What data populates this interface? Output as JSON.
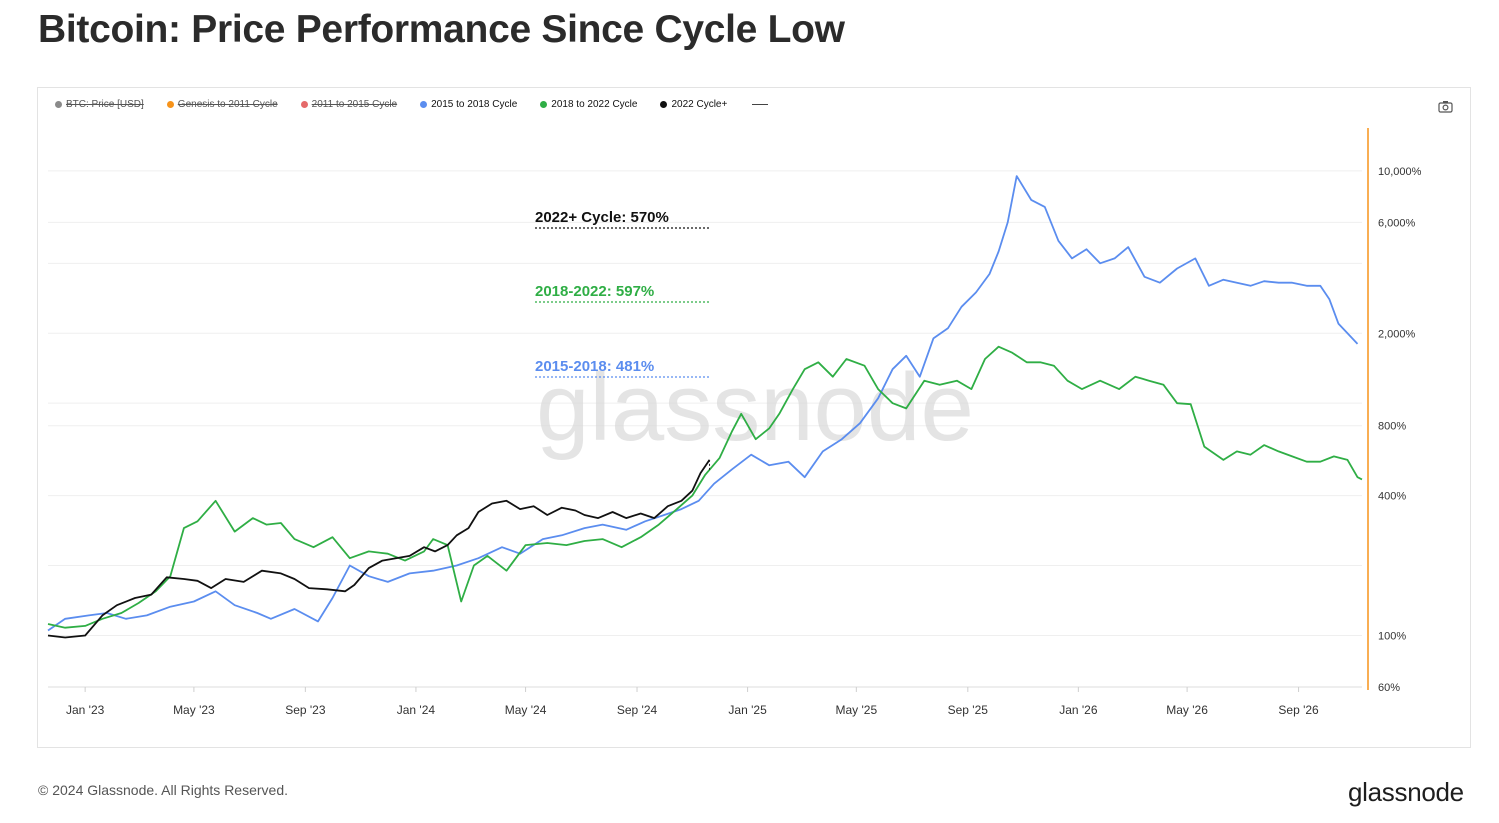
{
  "title": "Bitcoin: Price Performance Since Cycle Low",
  "legend": [
    {
      "label": "BTC: Price [USD]",
      "color": "#8a8a8a",
      "visible": false
    },
    {
      "label": "Genesis to 2011 Cycle",
      "color": "#f7931a",
      "visible": false
    },
    {
      "label": "2011 to 2015 Cycle",
      "color": "#e56a6a",
      "visible": false
    },
    {
      "label": "2015 to 2018 Cycle",
      "color": "#5b8def",
      "visible": true
    },
    {
      "label": "2018 to 2022 Cycle",
      "color": "#2fae45",
      "visible": true
    },
    {
      "label": "2022 Cycle+",
      "color": "#111111",
      "visible": true
    }
  ],
  "watermark": "glassnode",
  "footer": "© 2024 Glassnode. All Rights Reserved.",
  "brand": "glassnode",
  "icons": {
    "camera": "camera-icon"
  },
  "axis_color": "#f7931a",
  "chart_data": {
    "type": "line",
    "title": "Bitcoin: Price Performance Since Cycle Low",
    "x_range": [
      "2022-11-21",
      "2026-11-10"
    ],
    "x_ticks": [
      "Jan '23",
      "May '23",
      "Sep '23",
      "Jan '24",
      "May '24",
      "Sep '24",
      "Jan '25",
      "May '25",
      "Sep '25",
      "Jan '26",
      "May '26",
      "Sep '26"
    ],
    "y_scale": "log",
    "y_ticks": [
      "60%",
      "100%",
      "400%",
      "800%",
      "2,000%",
      "6,000%",
      "10,000%"
    ],
    "y_range": [
      60,
      15000
    ],
    "grid": true,
    "legend_position": "top-left",
    "annotations": [
      {
        "text": "2022+ Cycle: 570%",
        "color": "#111111",
        "value": 570
      },
      {
        "text": "2018-2022: 597%",
        "color": "#2fae45",
        "value": 597
      },
      {
        "text": "2015-2018: 481%",
        "color": "#5b8def",
        "value": 481
      }
    ],
    "series": [
      {
        "name": "2015 to 2018 Cycle",
        "color": "#5b8def",
        "x": [
          "2022-11-21",
          "2022-12-10",
          "2023-01-05",
          "2023-01-25",
          "2023-02-15",
          "2023-03-10",
          "2023-04-05",
          "2023-05-01",
          "2023-05-25",
          "2023-06-15",
          "2023-07-10",
          "2023-07-25",
          "2023-08-20",
          "2023-09-15",
          "2023-10-01",
          "2023-10-20",
          "2023-11-10",
          "2023-12-01",
          "2023-12-25",
          "2024-01-20",
          "2024-02-15",
          "2024-03-10",
          "2024-04-05",
          "2024-04-25",
          "2024-05-20",
          "2024-06-10",
          "2024-07-05",
          "2024-07-25",
          "2024-08-20",
          "2024-09-10",
          "2024-10-01",
          "2024-10-20",
          "2024-11-08",
          "2024-11-25",
          "2024-12-15",
          "2025-01-05",
          "2025-01-25",
          "2025-02-15",
          "2025-03-05",
          "2025-03-25",
          "2025-04-15",
          "2025-05-05",
          "2025-05-25",
          "2025-06-10",
          "2025-06-25",
          "2025-07-10",
          "2025-07-25",
          "2025-08-10",
          "2025-08-25",
          "2025-09-10",
          "2025-09-25",
          "2025-10-05",
          "2025-10-15",
          "2025-10-25",
          "2025-11-10",
          "2025-11-25",
          "2025-12-10",
          "2025-12-25",
          "2026-01-10",
          "2026-01-25",
          "2026-02-10",
          "2026-02-25",
          "2026-03-15",
          "2026-04-01",
          "2026-04-20",
          "2026-05-10",
          "2026-05-25",
          "2026-06-10",
          "2026-06-25",
          "2026-07-10",
          "2026-07-25",
          "2026-08-10",
          "2026-08-25",
          "2026-09-10",
          "2026-09-25",
          "2026-10-05",
          "2026-10-15",
          "2026-10-25",
          "2026-11-05"
        ],
        "values": [
          105,
          118,
          122,
          125,
          118,
          122,
          133,
          140,
          155,
          135,
          125,
          118,
          130,
          115,
          145,
          200,
          180,
          170,
          185,
          190,
          200,
          215,
          240,
          225,
          260,
          270,
          290,
          300,
          285,
          310,
          330,
          350,
          380,
          450,
          520,
          600,
          540,
          560,
          480,
          620,
          700,
          820,
          1050,
          1400,
          1600,
          1300,
          1900,
          2100,
          2600,
          3000,
          3600,
          4500,
          6000,
          9500,
          7500,
          7000,
          5000,
          4200,
          4600,
          4000,
          4200,
          4700,
          3500,
          3300,
          3800,
          4200,
          3200,
          3400,
          3300,
          3200,
          3350,
          3300,
          3300,
          3200,
          3200,
          2800,
          2200,
          2000,
          1800
        ]
      },
      {
        "name": "2018 to 2022 Cycle",
        "color": "#2fae45",
        "x": [
          "2022-11-21",
          "2022-12-10",
          "2023-01-01",
          "2023-01-20",
          "2023-02-10",
          "2023-03-01",
          "2023-03-20",
          "2023-04-05",
          "2023-04-20",
          "2023-05-05",
          "2023-05-25",
          "2023-06-15",
          "2023-07-05",
          "2023-07-20",
          "2023-08-05",
          "2023-08-20",
          "2023-09-10",
          "2023-10-01",
          "2023-10-20",
          "2023-11-10",
          "2023-12-01",
          "2023-12-20",
          "2024-01-10",
          "2024-01-20",
          "2024-02-05",
          "2024-02-20",
          "2024-03-05",
          "2024-03-20",
          "2024-04-10",
          "2024-05-01",
          "2024-05-25",
          "2024-06-15",
          "2024-07-05",
          "2024-07-25",
          "2024-08-15",
          "2024-09-05",
          "2024-09-25",
          "2024-10-15",
          "2024-11-01",
          "2024-11-15",
          "2024-12-01",
          "2024-12-15",
          "2024-12-25",
          "2025-01-10",
          "2025-01-25",
          "2025-02-05",
          "2025-02-20",
          "2025-03-05",
          "2025-03-20",
          "2025-04-05",
          "2025-04-20",
          "2025-05-10",
          "2025-05-25",
          "2025-06-10",
          "2025-06-25",
          "2025-07-15",
          "2025-08-01",
          "2025-08-20",
          "2025-09-05",
          "2025-09-20",
          "2025-10-05",
          "2025-10-20",
          "2025-11-05",
          "2025-11-20",
          "2025-12-05",
          "2025-12-20",
          "2026-01-05",
          "2026-01-25",
          "2026-02-15",
          "2026-03-05",
          "2026-03-20",
          "2026-04-05",
          "2026-04-20",
          "2026-05-05",
          "2026-05-20",
          "2026-06-10",
          "2026-06-25",
          "2026-07-10",
          "2026-07-25",
          "2026-08-10",
          "2026-08-25",
          "2026-09-10",
          "2026-09-25",
          "2026-10-10",
          "2026-10-25",
          "2026-11-05",
          "2026-11-10"
        ],
        "values": [
          112,
          108,
          110,
          118,
          125,
          138,
          155,
          180,
          290,
          310,
          380,
          280,
          320,
          300,
          305,
          260,
          240,
          265,
          215,
          230,
          225,
          210,
          230,
          260,
          245,
          140,
          200,
          220,
          190,
          245,
          250,
          245,
          255,
          260,
          240,
          265,
          300,
          350,
          400,
          490,
          580,
          760,
          900,
          700,
          780,
          900,
          1150,
          1400,
          1500,
          1300,
          1550,
          1450,
          1150,
          1000,
          950,
          1250,
          1200,
          1250,
          1150,
          1550,
          1750,
          1650,
          1500,
          1500,
          1450,
          1250,
          1150,
          1250,
          1150,
          1300,
          1250,
          1200,
          1000,
          990,
          650,
          570,
          620,
          600,
          660,
          620,
          590,
          560,
          560,
          590,
          570,
          480,
          470
        ]
      },
      {
        "name": "2022 Cycle+",
        "color": "#111111",
        "x": [
          "2022-11-21",
          "2022-12-10",
          "2023-01-01",
          "2023-01-20",
          "2023-02-05",
          "2023-02-25",
          "2023-03-15",
          "2023-04-01",
          "2023-04-20",
          "2023-05-05",
          "2023-05-20",
          "2023-06-05",
          "2023-06-25",
          "2023-07-15",
          "2023-08-05",
          "2023-08-20",
          "2023-09-05",
          "2023-09-25",
          "2023-10-15",
          "2023-10-25",
          "2023-11-10",
          "2023-11-25",
          "2023-12-10",
          "2023-12-25",
          "2024-01-10",
          "2024-01-22",
          "2024-02-05",
          "2024-02-15",
          "2024-02-28",
          "2024-03-10",
          "2024-03-25",
          "2024-04-10",
          "2024-04-25",
          "2024-05-10",
          "2024-05-25",
          "2024-06-10",
          "2024-06-25",
          "2024-07-05",
          "2024-07-20",
          "2024-08-05",
          "2024-08-20",
          "2024-09-05",
          "2024-09-20",
          "2024-10-05",
          "2024-10-20",
          "2024-11-01",
          "2024-11-10",
          "2024-11-20"
        ],
        "values": [
          100,
          98,
          100,
          122,
          135,
          145,
          150,
          178,
          175,
          172,
          160,
          175,
          170,
          190,
          185,
          175,
          160,
          158,
          155,
          165,
          195,
          210,
          215,
          220,
          240,
          230,
          245,
          270,
          290,
          340,
          370,
          380,
          350,
          360,
          330,
          355,
          345,
          330,
          320,
          340,
          320,
          335,
          320,
          360,
          380,
          420,
          500,
          570
        ]
      }
    ]
  }
}
